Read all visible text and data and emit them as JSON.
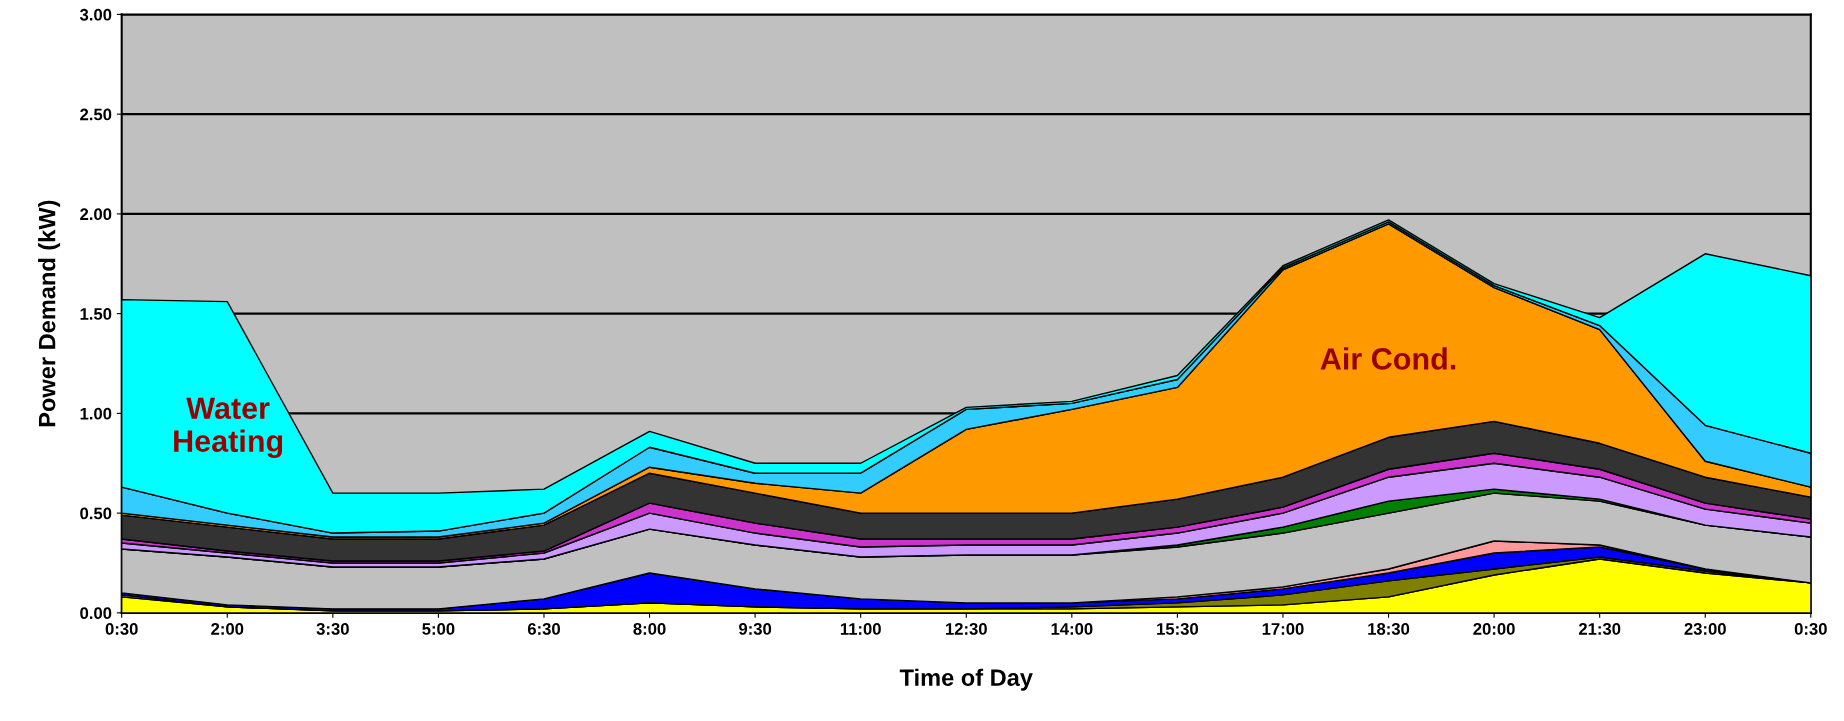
{
  "chart_data": {
    "type": "area",
    "stacked": true,
    "xlabel": "Time of Day",
    "ylabel": "Power Demand (kW)",
    "categories": [
      "0:30",
      "2:00",
      "3:30",
      "5:00",
      "6:30",
      "8:00",
      "9:30",
      "11:00",
      "12:30",
      "14:00",
      "15:30",
      "17:00",
      "18:30",
      "20:00",
      "21:30",
      "23:00",
      "0:30"
    ],
    "ylim": [
      0,
      3
    ],
    "yticks": [
      {
        "value": 0,
        "label": "0.00"
      },
      {
        "value": 0.5,
        "label": "0.50"
      },
      {
        "value": 1,
        "label": "1.00"
      },
      {
        "value": 1.5,
        "label": "1.50"
      },
      {
        "value": 2,
        "label": "2.00"
      },
      {
        "value": 2.5,
        "label": "2.50"
      },
      {
        "value": 3,
        "label": "3.00"
      }
    ],
    "grid": "y",
    "legend": false,
    "series": [
      {
        "color": "#ffff00",
        "values": [
          0.08,
          0.03,
          0.01,
          0.01,
          0.02,
          0.05,
          0.03,
          0.02,
          0.02,
          0.02,
          0.03,
          0.04,
          0.08,
          0.19,
          0.27,
          0.2,
          0.15
        ]
      },
      {
        "color": "#808000",
        "values": [
          0.01,
          0,
          0,
          0,
          0,
          0,
          0,
          0,
          0,
          0.01,
          0.02,
          0.05,
          0.08,
          0.03,
          0.01,
          0.01,
          0
        ]
      },
      {
        "color": "#0000ff",
        "values": [
          0.01,
          0.01,
          0.01,
          0.01,
          0.05,
          0.15,
          0.09,
          0.05,
          0.03,
          0.02,
          0.02,
          0.03,
          0.04,
          0.08,
          0.05,
          0.01,
          0
        ]
      },
      {
        "color": "#ff9999",
        "values": [
          0,
          0,
          0,
          0,
          0,
          0,
          0,
          0,
          0,
          0,
          0.01,
          0.01,
          0.02,
          0.06,
          0.01,
          0,
          0
        ]
      },
      {
        "color": "#c0c0c0",
        "values": [
          0.22,
          0.24,
          0.21,
          0.21,
          0.2,
          0.22,
          0.22,
          0.21,
          0.24,
          0.24,
          0.25,
          0.27,
          0.28,
          0.24,
          0.22,
          0.22,
          0.23
        ]
      },
      {
        "color": "#008000",
        "values": [
          0,
          0,
          0,
          0,
          0,
          0,
          0,
          0,
          0,
          0,
          0.01,
          0.03,
          0.06,
          0.02,
          0.01,
          0,
          0
        ]
      },
      {
        "color": "#cc99ff",
        "values": [
          0.03,
          0.02,
          0.02,
          0.02,
          0.03,
          0.08,
          0.06,
          0.05,
          0.05,
          0.05,
          0.06,
          0.07,
          0.12,
          0.13,
          0.11,
          0.08,
          0.07
        ]
      },
      {
        "color": "#cc33cc",
        "values": [
          0.02,
          0.01,
          0.01,
          0.01,
          0.01,
          0.05,
          0.05,
          0.04,
          0.03,
          0.03,
          0.03,
          0.03,
          0.04,
          0.05,
          0.04,
          0.03,
          0.02
        ]
      },
      {
        "color": "#333333",
        "values": [
          0.12,
          0.12,
          0.11,
          0.11,
          0.13,
          0.15,
          0.15,
          0.13,
          0.13,
          0.13,
          0.14,
          0.15,
          0.16,
          0.16,
          0.13,
          0.13,
          0.11
        ]
      },
      {
        "color": "#ff9900",
        "values": [
          0.01,
          0.01,
          0.01,
          0.01,
          0.01,
          0.03,
          0.05,
          0.1,
          0.42,
          0.52,
          0.56,
          1.04,
          1.07,
          0.67,
          0.57,
          0.08,
          0.05
        ]
      },
      {
        "color": "#33ccff",
        "values": [
          0.13,
          0.06,
          0.02,
          0.03,
          0.05,
          0.1,
          0.05,
          0.1,
          0.1,
          0.03,
          0.04,
          0.01,
          0.01,
          0.01,
          0.02,
          0.18,
          0.17
        ]
      },
      {
        "color": "#00ffff",
        "values": [
          0.94,
          1.06,
          0.2,
          0.19,
          0.12,
          0.08,
          0.05,
          0.05,
          0.01,
          0.01,
          0.02,
          0.01,
          0.01,
          0.01,
          0.04,
          0.86,
          0.89
        ]
      }
    ],
    "annotations": [
      "Water Heating",
      "Air Cond."
    ]
  }
}
